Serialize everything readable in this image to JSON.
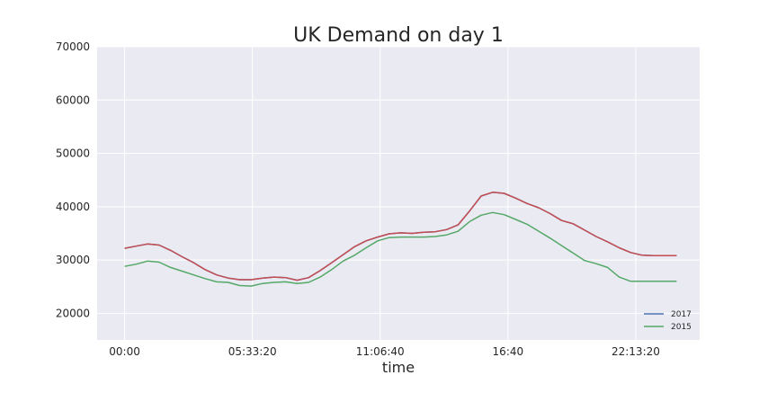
{
  "chart_data": {
    "type": "line",
    "title": "UK Demand on day 1",
    "xlabel": "time",
    "ylabel": "",
    "x_tick_labels": [
      "00:00",
      "05:33:20",
      "11:06:40",
      "16:40",
      "22:13:20"
    ],
    "x_tick_seconds": [
      0,
      20000,
      40000,
      60000,
      80000
    ],
    "xlim_seconds": [
      -4300,
      90000
    ],
    "ylim": [
      15000,
      70000
    ],
    "y_ticks": [
      20000,
      30000,
      40000,
      50000,
      60000,
      70000
    ],
    "y_tick_labels": [
      "20000",
      "30000",
      "40000",
      "50000",
      "60000",
      "70000"
    ],
    "grid": true,
    "legend_placement": "lower-right",
    "legend_entries": [
      "2017",
      "2015"
    ],
    "series": [
      {
        "name": "2017",
        "color": "#4c72b0",
        "x_seconds": [
          0,
          1800,
          3600,
          5400,
          7200,
          9000,
          10800,
          12600,
          14400,
          16200,
          18000,
          19800,
          21600,
          23400,
          25200,
          27000,
          28800,
          30600,
          32400,
          34200,
          36000,
          37800,
          39600,
          41400,
          43200,
          45000,
          46800,
          48600,
          50400,
          52200,
          54000,
          55800,
          57600,
          59400,
          61200,
          63000,
          64800,
          66600,
          68400,
          70200,
          72000,
          73800,
          75600,
          77400,
          79200,
          81000,
          82800,
          84600,
          86400
        ],
        "values": [
          32200,
          32600,
          33000,
          32800,
          31800,
          30600,
          29500,
          28200,
          27200,
          26600,
          26300,
          26300,
          26600,
          26800,
          26700,
          26200,
          26700,
          28000,
          29500,
          31000,
          32500,
          33600,
          34300,
          34900,
          35100,
          35000,
          35200,
          35300,
          35700,
          36600,
          39200,
          42000,
          42700,
          42500,
          41600,
          40600,
          39800,
          38700,
          37400,
          36800,
          35600,
          34400,
          33400,
          32300,
          31400,
          30900,
          30800,
          30800,
          30800
        ]
      },
      {
        "name": "",
        "color": "#c44e52",
        "x_seconds": [
          0,
          1800,
          3600,
          5400,
          7200,
          9000,
          10800,
          12600,
          14400,
          16200,
          18000,
          19800,
          21600,
          23400,
          25200,
          27000,
          28800,
          30600,
          32400,
          34200,
          36000,
          37800,
          39600,
          41400,
          43200,
          45000,
          46800,
          48600,
          50400,
          52200,
          54000,
          55800,
          57600,
          59400,
          61200,
          63000,
          64800,
          66600,
          68400,
          70200,
          72000,
          73800,
          75600,
          77400,
          79200,
          81000,
          82800,
          84600,
          86400
        ],
        "values": [
          32200,
          32600,
          33000,
          32800,
          31800,
          30600,
          29500,
          28200,
          27200,
          26600,
          26300,
          26300,
          26600,
          26800,
          26700,
          26200,
          26700,
          28000,
          29500,
          31000,
          32500,
          33600,
          34300,
          34900,
          35100,
          35000,
          35200,
          35300,
          35700,
          36600,
          39200,
          42000,
          42700,
          42500,
          41600,
          40600,
          39800,
          38700,
          37400,
          36800,
          35600,
          34400,
          33400,
          32300,
          31400,
          30900,
          30800,
          30800,
          30800
        ]
      },
      {
        "name": "2015",
        "color": "#55a868",
        "x_seconds": [
          0,
          1800,
          3600,
          5400,
          7200,
          9000,
          10800,
          12600,
          14400,
          16200,
          18000,
          19800,
          21600,
          23400,
          25200,
          27000,
          28800,
          30600,
          32400,
          34200,
          36000,
          37800,
          39600,
          41400,
          43200,
          45000,
          46800,
          48600,
          50400,
          52200,
          54000,
          55800,
          57600,
          59400,
          61200,
          63000,
          64800,
          66600,
          68400,
          70200,
          72000,
          73800,
          75600,
          77400,
          79200,
          81000,
          82800,
          84600,
          86400
        ],
        "values": [
          28800,
          29200,
          29800,
          29600,
          28600,
          27900,
          27200,
          26500,
          25900,
          25800,
          25200,
          25100,
          25600,
          25800,
          25900,
          25600,
          25800,
          26800,
          28200,
          29800,
          30900,
          32300,
          33600,
          34200,
          34300,
          34300,
          34300,
          34400,
          34700,
          35400,
          37200,
          38400,
          38900,
          38500,
          37600,
          36700,
          35400,
          34100,
          32700,
          31300,
          29900,
          29300,
          28600,
          26800,
          26000,
          26000,
          26000,
          26000,
          26000
        ]
      }
    ]
  }
}
